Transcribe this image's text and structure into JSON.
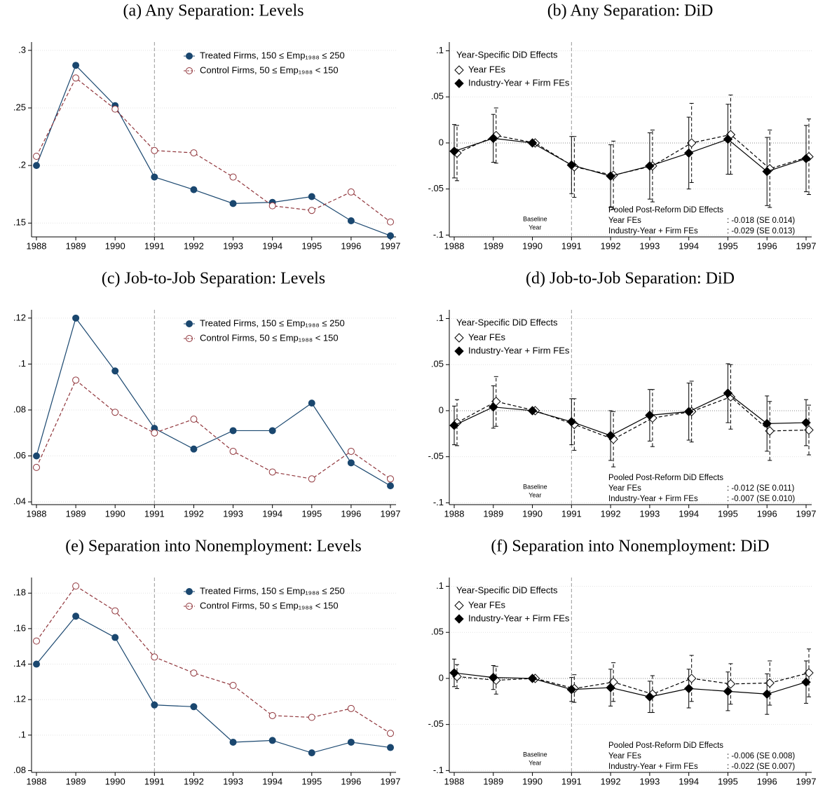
{
  "chart_data": [
    {
      "type": "line",
      "title": "(a) Any Separation: Levels",
      "x": [
        1988,
        1989,
        1990,
        1991,
        1992,
        1993,
        1994,
        1995,
        1996,
        1997
      ],
      "xlim": [
        1988,
        1997
      ],
      "xticks": [
        1988,
        1989,
        1990,
        1991,
        1992,
        1993,
        1994,
        1995,
        1996,
        1997
      ],
      "ylim": [
        0.138,
        0.306
      ],
      "yticks": [
        {
          "value": 0.15,
          "label": ".15"
        },
        {
          "value": 0.2,
          "label": ".2"
        },
        {
          "value": 0.25,
          "label": ".25"
        },
        {
          "value": 0.3,
          "label": ".3"
        }
      ],
      "grid": true,
      "vline": 1991,
      "series": [
        {
          "name": "Treated Firms, 150 ≤ Emp₁₉₈₈ ≤ 250",
          "color": "#1a476f",
          "marker": "filled",
          "dashed": false,
          "values": [
            0.2,
            0.287,
            0.252,
            0.19,
            0.179,
            0.167,
            0.168,
            0.173,
            0.152,
            0.139
          ]
        },
        {
          "name": "Control Firms,  50 ≤ Emp₁₉₈₈  < 150",
          "color": "#90353b",
          "marker": "hollow",
          "dashed": true,
          "values": [
            0.208,
            0.276,
            0.249,
            0.213,
            0.211,
            0.19,
            0.165,
            0.161,
            0.177,
            0.151
          ]
        }
      ]
    },
    {
      "type": "errorbar",
      "title": "(b) Any Separation: DiD",
      "x": [
        1988,
        1989,
        1990,
        1991,
        1992,
        1993,
        1994,
        1995,
        1996,
        1997
      ],
      "xlim": [
        1988,
        1997
      ],
      "xticks": [
        1988,
        1989,
        1990,
        1991,
        1992,
        1993,
        1994,
        1995,
        1996,
        1997
      ],
      "ylim": [
        -0.102,
        0.108
      ],
      "yticks": [
        {
          "value": -0.1,
          "label": "-.1"
        },
        {
          "value": -0.05,
          "label": "-.05"
        },
        0,
        {
          "value": 0.05,
          "label": ".05"
        },
        {
          "value": 0.1,
          "label": ".1"
        }
      ],
      "grid": true,
      "vline": 1991,
      "yline": 0,
      "legend_title": "Year-Specific DiD Effects",
      "baseline_label": [
        "Baseline",
        "Year"
      ],
      "pooled": {
        "title": "Pooled Post-Reform DiD Effects",
        "rows": [
          [
            "Year FEs",
            ": -0.018 (SE 0.014)"
          ],
          [
            "Industry-Year + Firm FEs",
            ": -0.029 (SE 0.013)"
          ]
        ]
      },
      "series": [
        {
          "name": "Year FEs",
          "color": "#000000",
          "marker": "hollow",
          "dashed": true,
          "values": [
            -0.011,
            0.008,
            0,
            -0.026,
            -0.035,
            -0.025,
            0.0,
            0.009,
            -0.028,
            -0.015
          ],
          "errors": [
            0.03,
            0.03,
            0,
            0.033,
            0.037,
            0.039,
            0.043,
            0.043,
            0.042,
            0.041
          ]
        },
        {
          "name": "Industry-Year + Firm FEs",
          "color": "#000000",
          "marker": "filled",
          "dashed": false,
          "values": [
            -0.009,
            0.005,
            0,
            -0.024,
            -0.036,
            -0.025,
            -0.011,
            0.004,
            -0.031,
            -0.017
          ],
          "errors": [
            0.029,
            0.026,
            0,
            0.031,
            0.034,
            0.036,
            0.039,
            0.038,
            0.037,
            0.036
          ]
        }
      ]
    },
    {
      "type": "line",
      "title": "(c) Job-to-Job Separation: Levels",
      "x": [
        1988,
        1989,
        1990,
        1991,
        1992,
        1993,
        1994,
        1995,
        1996,
        1997
      ],
      "xlim": [
        1988,
        1997
      ],
      "xticks": [
        1988,
        1989,
        1990,
        1991,
        1992,
        1993,
        1994,
        1995,
        1996,
        1997
      ],
      "ylim": [
        0.0388,
        0.123
      ],
      "yticks": [
        {
          "value": 0.04,
          "label": ".04"
        },
        {
          "value": 0.06,
          "label": ".06"
        },
        {
          "value": 0.08,
          "label": ".08"
        },
        {
          "value": 0.1,
          "label": ".1"
        },
        {
          "value": 0.12,
          "label": ".12"
        }
      ],
      "grid": true,
      "vline": 1991,
      "series": [
        {
          "name": "Treated Firms, 150 ≤ Emp₁₉₈₈ ≤ 250",
          "color": "#1a476f",
          "marker": "filled",
          "dashed": false,
          "values": [
            0.06,
            0.12,
            0.097,
            0.072,
            0.063,
            0.071,
            0.071,
            0.083,
            0.057,
            0.047
          ]
        },
        {
          "name": "Control Firms,  50 ≤ Emp₁₉₈₈  < 150",
          "color": "#90353b",
          "marker": "hollow",
          "dashed": true,
          "values": [
            0.055,
            0.093,
            0.079,
            0.07,
            0.076,
            0.062,
            0.053,
            0.05,
            0.062,
            0.05
          ]
        }
      ]
    },
    {
      "type": "errorbar",
      "title": "(d) Job-to-Job Separation: DiD",
      "x": [
        1988,
        1989,
        1990,
        1991,
        1992,
        1993,
        1994,
        1995,
        1996,
        1997
      ],
      "xlim": [
        1988,
        1997
      ],
      "xticks": [
        1988,
        1989,
        1990,
        1991,
        1992,
        1993,
        1994,
        1995,
        1996,
        1997
      ],
      "ylim": [
        -0.102,
        0.108
      ],
      "yticks": [
        {
          "value": -0.1,
          "label": "-.1"
        },
        {
          "value": -0.05,
          "label": "-.05"
        },
        0,
        {
          "value": 0.05,
          "label": ".05"
        },
        {
          "value": 0.1,
          "label": ".1"
        }
      ],
      "grid": true,
      "vline": 1991,
      "yline": 0,
      "legend_title": "Year-Specific DiD Effects",
      "baseline_label": [
        "Baseline",
        "Year"
      ],
      "pooled": {
        "title": "Pooled Post-Reform DiD Effects",
        "rows": [
          [
            "Year FEs",
            ": -0.012 (SE 0.011)"
          ],
          [
            "Industry-Year + Firm FEs",
            ": -0.007 (SE 0.010)"
          ]
        ]
      },
      "series": [
        {
          "name": "Year FEs",
          "color": "#000000",
          "marker": "hollow",
          "dashed": true,
          "values": [
            -0.013,
            0.01,
            0,
            -0.015,
            -0.031,
            -0.008,
            -0.001,
            0.015,
            -0.022,
            -0.021
          ],
          "errors": [
            0.025,
            0.027,
            0,
            0.028,
            0.03,
            0.031,
            0.033,
            0.035,
            0.032,
            0.027
          ]
        },
        {
          "name": "Industry-Year + Firm FEs",
          "color": "#000000",
          "marker": "filled",
          "dashed": false,
          "values": [
            -0.016,
            0.004,
            0,
            -0.012,
            -0.027,
            -0.005,
            -0.001,
            0.019,
            -0.014,
            -0.013
          ],
          "errors": [
            0.021,
            0.023,
            0,
            0.025,
            0.027,
            0.028,
            0.031,
            0.032,
            0.03,
            0.025
          ]
        }
      ]
    },
    {
      "type": "line",
      "title": "(e) Separation into Nonemployment: Levels",
      "x": [
        1988,
        1989,
        1990,
        1991,
        1992,
        1993,
        1994,
        1995,
        1996,
        1997
      ],
      "xlim": [
        1988,
        1997
      ],
      "xticks": [
        1988,
        1989,
        1990,
        1991,
        1992,
        1993,
        1994,
        1995,
        1996,
        1997
      ],
      "ylim": [
        0.079,
        0.188
      ],
      "yticks": [
        {
          "value": 0.08,
          "label": ".08"
        },
        {
          "value": 0.1,
          "label": ".1"
        },
        {
          "value": 0.12,
          "label": ".12"
        },
        {
          "value": 0.14,
          "label": ".14"
        },
        {
          "value": 0.16,
          "label": ".16"
        },
        {
          "value": 0.18,
          "label": ".18"
        }
      ],
      "grid": true,
      "vline": 1991,
      "series": [
        {
          "name": "Treated Firms, 150 ≤ Emp₁₉₈₈ ≤ 250",
          "color": "#1a476f",
          "marker": "filled",
          "dashed": false,
          "values": [
            0.14,
            0.167,
            0.155,
            0.117,
            0.116,
            0.096,
            0.097,
            0.09,
            0.096,
            0.093
          ]
        },
        {
          "name": "Control Firms,  50 ≤ Emp₁₉₈₈  < 150",
          "color": "#90353b",
          "marker": "hollow",
          "dashed": true,
          "values": [
            0.153,
            0.184,
            0.17,
            0.144,
            0.135,
            0.128,
            0.111,
            0.11,
            0.115,
            0.101
          ]
        }
      ]
    },
    {
      "type": "errorbar",
      "title": "(f) Separation into Nonemployment: DiD",
      "x": [
        1988,
        1989,
        1990,
        1991,
        1992,
        1993,
        1994,
        1995,
        1996,
        1997
      ],
      "xlim": [
        1988,
        1997
      ],
      "xticks": [
        1988,
        1989,
        1990,
        1991,
        1992,
        1993,
        1994,
        1995,
        1996,
        1997
      ],
      "ylim": [
        -0.102,
        0.108
      ],
      "yticks": [
        {
          "value": -0.1,
          "label": "-.1"
        },
        {
          "value": -0.05,
          "label": "-.05"
        },
        0,
        {
          "value": 0.05,
          "label": ".05"
        },
        {
          "value": 0.1,
          "label": ".1"
        }
      ],
      "grid": true,
      "vline": 1991,
      "yline": 0,
      "legend_title": "Year-Specific DiD Effects",
      "baseline_label": [
        "Baseline",
        "Year"
      ],
      "pooled": {
        "title": "Pooled Post-Reform DiD Effects",
        "rows": [
          [
            "Year FEs",
            ": -0.006 (SE 0.008)"
          ],
          [
            "Industry-Year + Firm FEs",
            ": -0.022 (SE 0.007)"
          ]
        ]
      },
      "series": [
        {
          "name": "Year FEs",
          "color": "#000000",
          "marker": "hollow",
          "dashed": true,
          "values": [
            0.002,
            -0.002,
            0,
            -0.011,
            -0.004,
            -0.017,
            0.0,
            -0.006,
            -0.005,
            0.006
          ],
          "errors": [
            0.013,
            0.015,
            0,
            0.015,
            0.021,
            0.02,
            0.025,
            0.022,
            0.024,
            0.026
          ]
        },
        {
          "name": "Industry-Year + Firm FEs",
          "color": "#000000",
          "marker": "filled",
          "dashed": false,
          "values": [
            0.006,
            0.001,
            0,
            -0.012,
            -0.01,
            -0.02,
            -0.011,
            -0.014,
            -0.017,
            -0.004
          ],
          "errors": [
            0.015,
            0.013,
            0,
            0.013,
            0.02,
            0.017,
            0.021,
            0.021,
            0.022,
            0.023
          ]
        }
      ]
    }
  ]
}
